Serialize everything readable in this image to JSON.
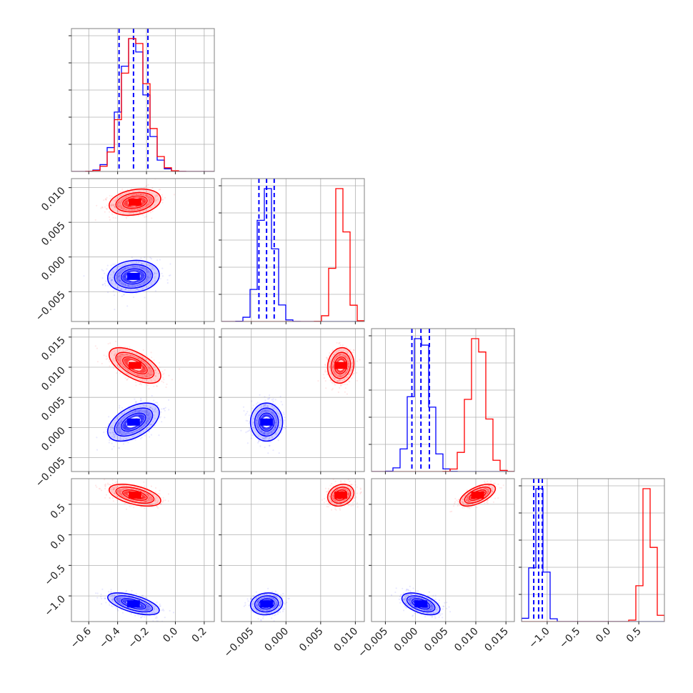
{
  "chart_data": {
    "type": "corner",
    "colors": {
      "series_a": "#0000ff",
      "series_b": "#ff0000"
    },
    "grid": true,
    "parameters": [
      {
        "range": [
          -0.72,
          0.27
        ],
        "ticks": [
          -0.6,
          -0.4,
          -0.2,
          0.0,
          0.2
        ],
        "tick_labels": [
          "−0.6",
          "−0.4",
          "−0.2",
          "0.0",
          "0.2"
        ]
      },
      {
        "range": [
          -0.0093,
          0.0113
        ],
        "ticks": [
          -0.005,
          0.0,
          0.005,
          0.01
        ],
        "tick_labels": [
          "−0.005",
          "0.000",
          "0.005",
          "0.010"
        ]
      },
      {
        "range": [
          -0.0073,
          0.0164
        ],
        "ticks": [
          -0.005,
          0.0,
          0.005,
          0.01,
          0.015
        ],
        "tick_labels": [
          "−0.005",
          "0.000",
          "0.005",
          "0.010",
          "0.015"
        ]
      },
      {
        "range": [
          -1.42,
          0.92
        ],
        "ticks": [
          -1.0,
          -0.5,
          0.0,
          0.5
        ],
        "tick_labels": [
          "−1.0",
          "−0.5",
          "0.0",
          "0.5"
        ]
      }
    ],
    "series": [
      {
        "color": "#0000ff",
        "means": [
          -0.29,
          -0.0028,
          0.0009,
          -1.13
        ],
        "sds": [
          0.085,
          0.0011,
          0.0015,
          0.085
        ],
        "quantiles": [
          [
            -0.39,
            -0.29,
            -0.19
          ],
          [
            -0.0039,
            -0.0028,
            -0.0017
          ],
          [
            -0.0006,
            0.0009,
            0.0023
          ],
          [
            -1.22,
            -1.14,
            -1.08
          ]
        ]
      },
      {
        "color": "#ff0000",
        "means": [
          -0.28,
          0.0079,
          0.0103,
          0.65
        ],
        "sds": [
          0.085,
          0.0009,
          0.0014,
          0.085
        ],
        "quantiles": []
      }
    ],
    "correlations": [
      {
        "pair": [
          0,
          1
        ],
        "values": [
          0.1,
          0.25
        ]
      },
      {
        "pair": [
          0,
          2
        ],
        "values": [
          0.5,
          -0.6
        ]
      },
      {
        "pair": [
          0,
          3
        ],
        "values": [
          -0.6,
          -0.5
        ]
      },
      {
        "pair": [
          1,
          2
        ],
        "values": [
          0.0,
          0.1
        ]
      },
      {
        "pair": [
          1,
          3
        ],
        "values": [
          0.1,
          0.2
        ]
      },
      {
        "pair": [
          2,
          3
        ],
        "values": [
          -0.5,
          0.6
        ]
      }
    ]
  }
}
